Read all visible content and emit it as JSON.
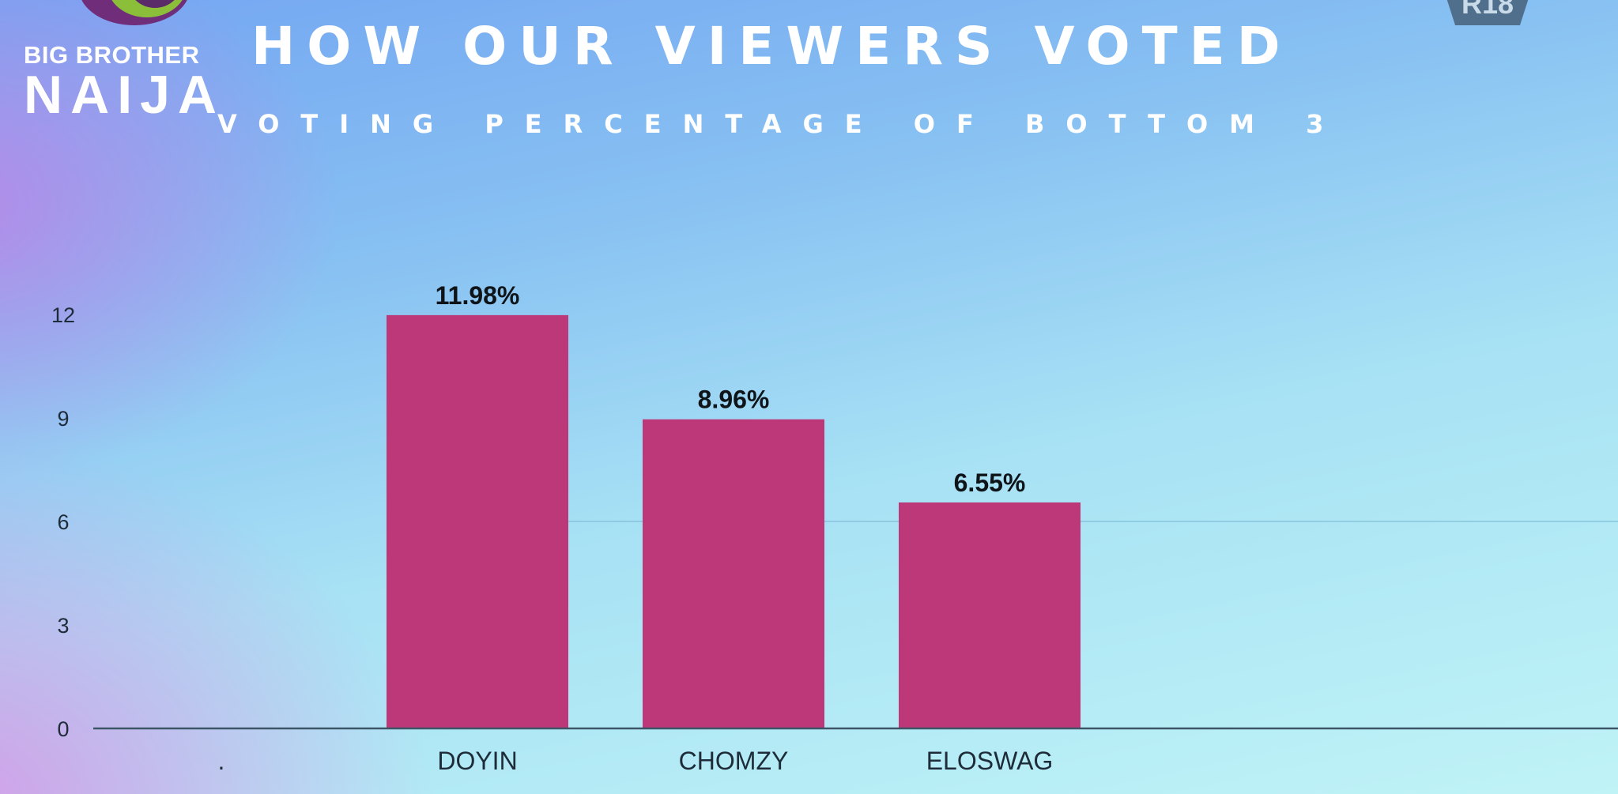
{
  "logo": {
    "line1": "BIG BROTHER",
    "line2": "NAIJA"
  },
  "rating_badge": "R18",
  "colors": {
    "bar": "#bc3878",
    "axis": "#3c5668",
    "gridline": "#7fbcd6",
    "text": "#1e2c3a"
  },
  "chart_data": {
    "type": "bar",
    "title": "HOW OUR VIEWERS VOTED",
    "subtitle": "VOTING PERCENTAGE OF BOTTOM 3",
    "xlabel": "",
    "ylabel": "",
    "categories": [
      ".",
      "DOYIN",
      "CHOMZY",
      "ELOSWAG"
    ],
    "values": [
      null,
      11.98,
      8.96,
      6.55
    ],
    "data_labels": [
      "",
      "11.98%",
      "8.96%",
      "6.55%"
    ],
    "yticks": [
      "0",
      "3",
      "6",
      "9",
      "12"
    ],
    "ylim": [
      0,
      12
    ],
    "grid": "horizontal",
    "legend": "none"
  }
}
